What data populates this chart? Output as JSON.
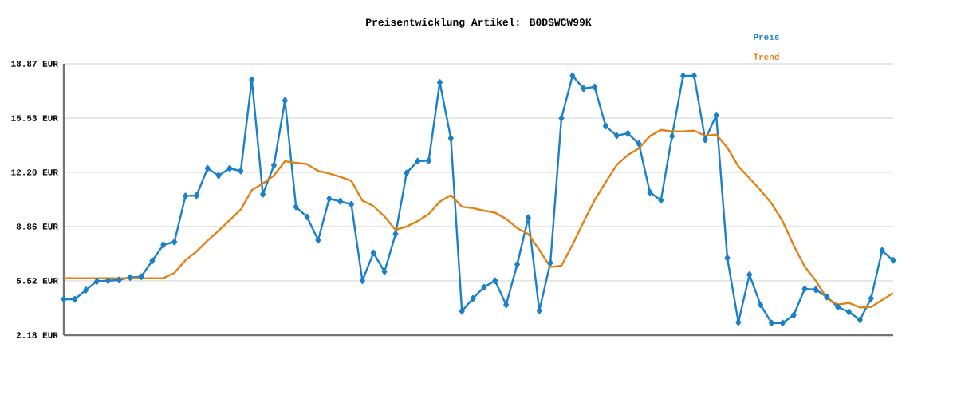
{
  "chart_data": {
    "type": "line",
    "title": "Preisentwicklung Artikel: B0DSWCW99K",
    "categories": [
      null,
      null,
      null,
      null,
      null,
      null,
      null,
      null,
      null,
      null,
      null,
      null,
      null,
      null,
      null,
      null,
      null,
      null,
      null,
      null,
      null,
      null,
      null,
      null,
      null,
      null,
      null,
      null,
      null,
      null,
      null,
      null,
      null,
      null,
      null,
      null,
      null,
      null,
      null,
      null,
      null,
      null,
      null,
      null,
      null,
      null,
      null,
      null,
      null,
      null,
      null,
      null,
      null,
      null,
      null,
      null,
      null,
      null,
      null,
      null,
      null,
      null,
      null,
      null,
      null,
      null,
      null,
      null,
      null,
      null,
      null,
      null,
      null,
      null,
      null,
      null
    ],
    "series": [
      {
        "name": "Preis",
        "color": "#1a80c8",
        "marker": "diamond",
        "values": [
          4.39,
          4.39,
          4.96,
          5.5,
          5.53,
          5.58,
          5.73,
          5.78,
          6.76,
          7.74,
          7.91,
          10.74,
          10.77,
          12.44,
          12.0,
          12.44,
          12.28,
          17.89,
          10.85,
          12.62,
          16.61,
          10.07,
          9.45,
          8.02,
          10.57,
          10.41,
          10.23,
          5.53,
          7.24,
          6.09,
          8.4,
          12.16,
          12.88,
          12.92,
          17.73,
          14.29,
          3.65,
          4.44,
          5.13,
          5.53,
          4.05,
          6.53,
          9.41,
          3.69,
          6.63,
          15.53,
          18.14,
          17.35,
          17.45,
          15.04,
          14.45,
          14.59,
          13.96,
          10.97,
          10.48,
          14.42,
          18.14,
          18.14,
          14.21,
          15.71,
          6.93,
          2.97,
          5.9,
          4.05,
          2.93,
          2.93,
          3.41,
          5.03,
          4.98,
          4.54,
          3.91,
          3.6,
          3.13,
          4.44,
          7.38,
          6.78
        ]
      },
      {
        "name": "Trend",
        "color": "#e08214",
        "marker": "none",
        "values": [
          5.68,
          5.68,
          5.68,
          5.68,
          5.68,
          5.68,
          5.68,
          5.68,
          5.68,
          5.68,
          6.01,
          6.79,
          7.33,
          7.99,
          8.61,
          9.25,
          9.9,
          11.1,
          11.51,
          12.0,
          12.88,
          12.78,
          12.7,
          12.28,
          12.13,
          11.92,
          11.67,
          10.46,
          10.12,
          9.48,
          8.65,
          8.86,
          9.19,
          9.63,
          10.39,
          10.79,
          10.08,
          9.99,
          9.84,
          9.71,
          9.33,
          8.76,
          8.4,
          7.42,
          6.37,
          6.45,
          7.74,
          9.14,
          10.48,
          11.59,
          12.65,
          13.26,
          13.67,
          14.42,
          14.81,
          14.71,
          14.71,
          14.76,
          14.45,
          14.52,
          13.72,
          12.57,
          11.84,
          11.1,
          10.28,
          9.19,
          7.71,
          6.4,
          5.53,
          4.44,
          4.06,
          4.16,
          3.88,
          3.91,
          4.34,
          4.77
        ]
      }
    ],
    "ylim": [
      2.18,
      18.87
    ],
    "yticks": [
      {
        "value": 2.18,
        "label": "2.18 EUR"
      },
      {
        "value": 5.52,
        "label": "5.52 EUR"
      },
      {
        "value": 8.86,
        "label": "8.86 EUR"
      },
      {
        "value": 12.2,
        "label": "12.20 EUR"
      },
      {
        "value": 15.53,
        "label": "15.53 EUR"
      },
      {
        "value": 18.87,
        "label": "18.87 EUR"
      }
    ],
    "grid": "y",
    "legend": "top right",
    "tick_labels": "y",
    "line_style": "solid"
  }
}
